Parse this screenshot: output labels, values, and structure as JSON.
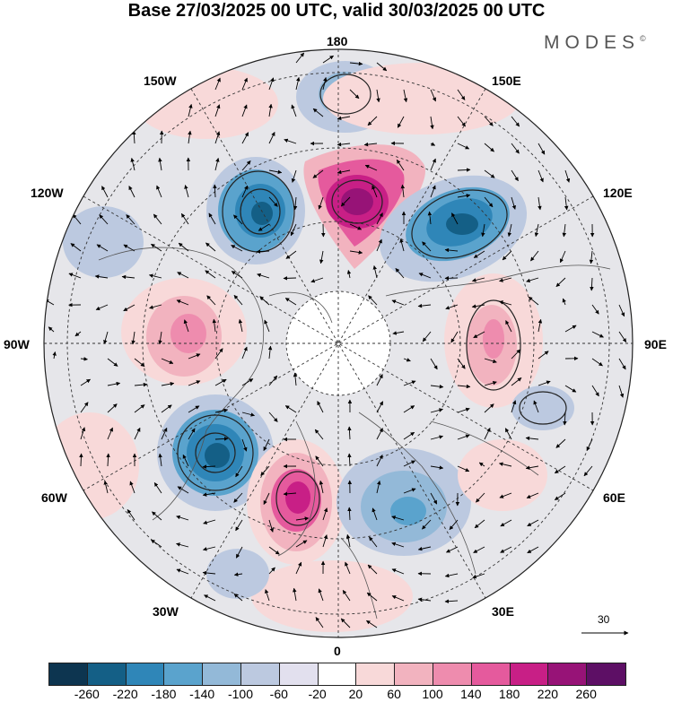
{
  "header": {
    "title": "Base 27/03/2025 00 UTC, valid 30/03/2025 00 UTC",
    "brand": "MODES",
    "brand_mark": "©"
  },
  "map": {
    "projection": "north-polar-stereographic",
    "longitude_labels": {
      "top": "180",
      "bottom": "0",
      "left": "90W",
      "right": "90E",
      "upper_left": "150W",
      "upper_right": "150E",
      "left_upper": "120W",
      "right_upper": "120E",
      "left_lower": "60W",
      "right_lower": "60E",
      "lower_left": "30W",
      "lower_right": "30E"
    },
    "vector_reference": "30"
  },
  "colorbar": {
    "colors": [
      "#0d3550",
      "#145f86",
      "#2f86b8",
      "#5aa3cd",
      "#93b9d8",
      "#bcc9e0",
      "#e2e0ee",
      "#ffffff",
      "#f8d9d9",
      "#f2b3bf",
      "#ee8cae",
      "#e55a9d",
      "#c81f86",
      "#971377",
      "#5d0f65"
    ],
    "ticks": [
      "-260",
      "-220",
      "-180",
      "-140",
      "-100",
      "-60",
      "-20",
      "20",
      "60",
      "100",
      "140",
      "180",
      "220",
      "260"
    ]
  }
}
